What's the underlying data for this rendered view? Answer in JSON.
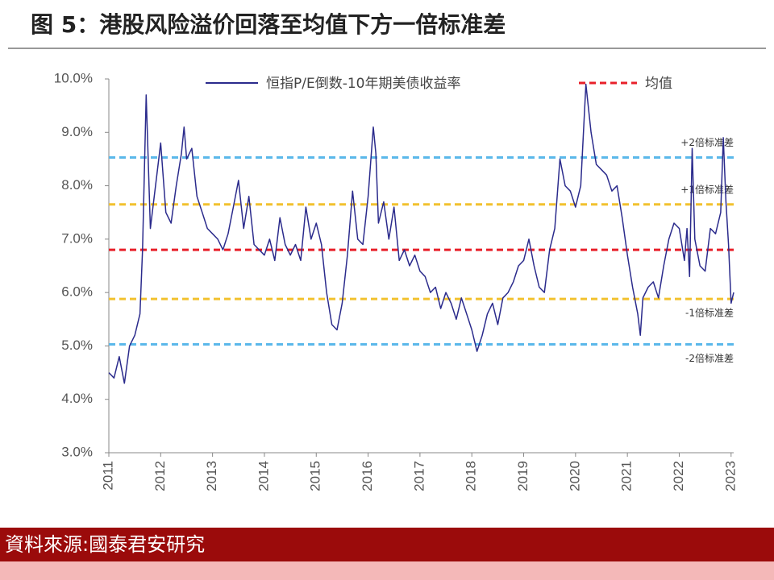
{
  "chart_data": {
    "type": "line",
    "title": "图 5：港股风险溢价回落至均值下方一倍标准差",
    "source": "資料來源:國泰君安研究",
    "x": [
      2011.0,
      2011.1,
      2011.2,
      2011.3,
      2011.4,
      2011.5,
      2011.6,
      2011.65,
      2011.72,
      2011.8,
      2011.9,
      2012.0,
      2012.1,
      2012.2,
      2012.3,
      2012.4,
      2012.45,
      2012.5,
      2012.6,
      2012.7,
      2012.8,
      2012.9,
      2013.0,
      2013.1,
      2013.2,
      2013.3,
      2013.4,
      2013.5,
      2013.6,
      2013.7,
      2013.8,
      2013.9,
      2014.0,
      2014.1,
      2014.2,
      2014.3,
      2014.4,
      2014.5,
      2014.6,
      2014.7,
      2014.8,
      2014.9,
      2015.0,
      2015.1,
      2015.2,
      2015.3,
      2015.4,
      2015.5,
      2015.6,
      2015.7,
      2015.8,
      2015.9,
      2016.0,
      2016.1,
      2016.15,
      2016.2,
      2016.3,
      2016.4,
      2016.5,
      2016.6,
      2016.7,
      2016.8,
      2016.9,
      2017.0,
      2017.1,
      2017.2,
      2017.3,
      2017.4,
      2017.5,
      2017.6,
      2017.7,
      2017.8,
      2017.9,
      2018.0,
      2018.1,
      2018.2,
      2018.3,
      2018.4,
      2018.5,
      2018.6,
      2018.7,
      2018.8,
      2018.9,
      2019.0,
      2019.1,
      2019.2,
      2019.3,
      2019.4,
      2019.5,
      2019.6,
      2019.7,
      2019.8,
      2019.9,
      2020.0,
      2020.1,
      2020.2,
      2020.3,
      2020.4,
      2020.5,
      2020.6,
      2020.7,
      2020.8,
      2020.9,
      2021.0,
      2021.1,
      2021.2,
      2021.25,
      2021.3,
      2021.4,
      2021.5,
      2021.6,
      2021.7,
      2021.8,
      2021.9,
      2022.0,
      2022.1,
      2022.15,
      2022.2,
      2022.25,
      2022.3,
      2022.4,
      2022.5,
      2022.6,
      2022.7,
      2022.8,
      2022.85,
      2022.9,
      2022.95,
      2023.0,
      2023.05
    ],
    "series": [
      {
        "name": "恒指P/E倒数-10年期美债收益率",
        "color": "#2b2b8c",
        "values": [
          4.5,
          4.4,
          4.8,
          4.3,
          5.0,
          5.2,
          5.6,
          6.8,
          9.7,
          7.2,
          8.0,
          8.8,
          7.5,
          7.3,
          8.0,
          8.6,
          9.1,
          8.5,
          8.7,
          7.8,
          7.5,
          7.2,
          7.1,
          7.0,
          6.8,
          7.1,
          7.6,
          8.1,
          7.2,
          7.8,
          6.9,
          6.8,
          6.7,
          7.0,
          6.6,
          7.4,
          6.9,
          6.7,
          6.9,
          6.6,
          7.6,
          7.0,
          7.3,
          6.9,
          6.0,
          5.4,
          5.3,
          5.8,
          6.7,
          7.9,
          7.0,
          6.9,
          7.8,
          9.1,
          8.6,
          7.3,
          7.7,
          7.0,
          7.6,
          6.6,
          6.8,
          6.5,
          6.7,
          6.4,
          6.3,
          6.0,
          6.1,
          5.7,
          6.0,
          5.8,
          5.5,
          5.9,
          5.6,
          5.3,
          4.9,
          5.2,
          5.6,
          5.8,
          5.4,
          5.9,
          6.0,
          6.2,
          6.5,
          6.6,
          7.0,
          6.5,
          6.1,
          6.0,
          6.8,
          7.2,
          8.5,
          8.0,
          7.9,
          7.6,
          8.0,
          9.9,
          9.0,
          8.4,
          8.3,
          8.2,
          7.9,
          8.0,
          7.4,
          6.7,
          6.1,
          5.6,
          5.2,
          5.9,
          6.1,
          6.2,
          5.9,
          6.5,
          7.0,
          7.3,
          7.2,
          6.6,
          7.2,
          6.3,
          8.7,
          7.0,
          6.5,
          6.4,
          7.2,
          7.1,
          7.5,
          8.9,
          7.7,
          6.9,
          5.8,
          6.0
        ]
      }
    ],
    "reference_lines": [
      {
        "name": "均值",
        "value": 6.8,
        "color": "#e8202a"
      },
      {
        "label": "+2倍标准差",
        "value": 8.53,
        "color": "#5bb8ea"
      },
      {
        "label": "+1倍标准差",
        "value": 7.65,
        "color": "#f2c12e"
      },
      {
        "label": "-1倍标准差",
        "value": 5.88,
        "color": "#f2c12e"
      },
      {
        "label": "-2倍标准差",
        "value": 5.03,
        "color": "#5bb8ea"
      }
    ],
    "xlim": [
      2011,
      2023.05
    ],
    "xticks": [
      2011,
      2012,
      2013,
      2014,
      2015,
      2016,
      2017,
      2018,
      2019,
      2020,
      2021,
      2022,
      2023
    ],
    "ylim": [
      3,
      10
    ],
    "yticks": [
      {
        "value": 3,
        "label": "3.0%"
      },
      {
        "value": 4,
        "label": "4.0%"
      },
      {
        "value": 5,
        "label": "5.0%"
      },
      {
        "value": 6,
        "label": "6.0%"
      },
      {
        "value": 7,
        "label": "7.0%"
      },
      {
        "value": 8,
        "label": "8.0%"
      },
      {
        "value": 9,
        "label": "9.0%"
      },
      {
        "value": 10,
        "label": "10.0%"
      }
    ]
  }
}
